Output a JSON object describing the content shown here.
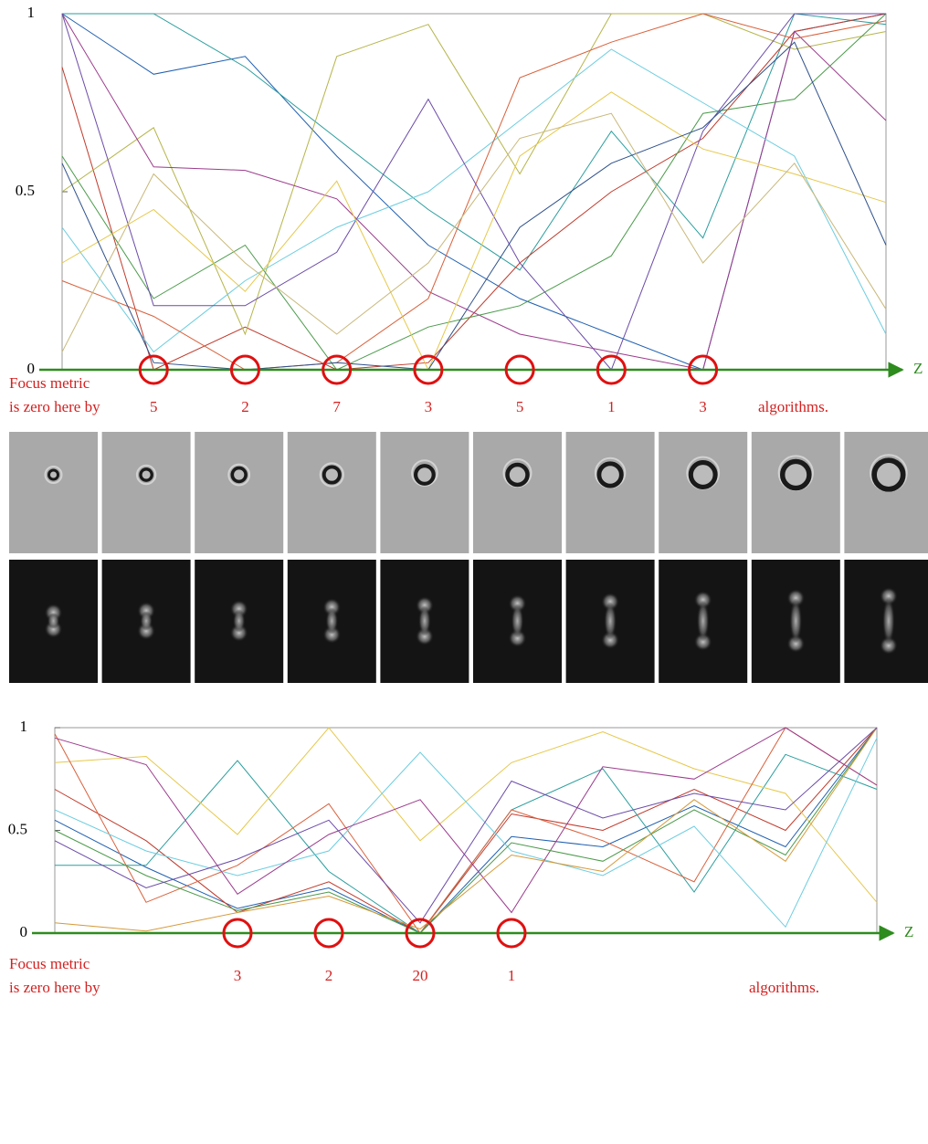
{
  "chart_data": [
    {
      "type": "line",
      "categories": [
        null,
        null,
        null,
        null,
        null,
        null,
        null,
        null,
        null,
        null
      ],
      "ylim": [
        0,
        1
      ],
      "yticks": [
        0,
        0.5,
        1
      ],
      "grid": false,
      "axis_label": "Z",
      "note_lines": [
        "Focus metric",
        "is zero here by"
      ],
      "zero_counts": [
        null,
        5,
        2,
        7,
        3,
        5,
        1,
        3,
        null,
        null
      ],
      "note_end": "algorithms.",
      "series": [
        {
          "color": "#1f5fb0",
          "values": [
            1,
            0.83,
            0.88,
            0.6,
            0.35,
            0.2,
            0.1,
            0,
            0.95,
            1
          ]
        },
        {
          "color": "#2a9d9d",
          "values": [
            1,
            1,
            0.85,
            0.65,
            0.45,
            0.28,
            0.67,
            0.37,
            1,
            0.97
          ]
        },
        {
          "color": "#c0392b",
          "values": [
            0.85,
            0,
            0.12,
            0,
            0.02,
            0.3,
            0.5,
            0.65,
            0.95,
            1
          ]
        },
        {
          "color": "#b5b54a",
          "values": [
            0.5,
            0.68,
            0.1,
            0.88,
            0.97,
            0.55,
            1,
            1,
            0.9,
            0.95
          ]
        },
        {
          "color": "#9b3b8c",
          "values": [
            1,
            0.57,
            0.56,
            0.48,
            0.22,
            0.1,
            0.05,
            0,
            0.95,
            0.7
          ]
        },
        {
          "color": "#6ccde0",
          "values": [
            0.4,
            0.05,
            0.25,
            0.4,
            0.5,
            0.7,
            0.9,
            0.75,
            0.6,
            0.1
          ]
        },
        {
          "color": "#d9603b",
          "values": [
            0.25,
            0.15,
            0,
            0.02,
            0.2,
            0.82,
            0.92,
            1,
            0.93,
            0.98
          ]
        },
        {
          "color": "#4a9a4a",
          "values": [
            0.6,
            0.2,
            0.35,
            0,
            0.12,
            0.18,
            0.32,
            0.72,
            0.76,
            1
          ]
        },
        {
          "color": "#6a4aa8",
          "values": [
            1,
            0.18,
            0.18,
            0.33,
            0.76,
            0.3,
            0,
            0.67,
            1,
            1
          ]
        },
        {
          "color": "#e6c84a",
          "values": [
            0.3,
            0.45,
            0.22,
            0.53,
            0,
            0.6,
            0.78,
            0.62,
            0.55,
            0.47
          ]
        },
        {
          "color": "#2d4f8a",
          "values": [
            0.58,
            0.02,
            0,
            0.02,
            0,
            0.4,
            0.58,
            0.68,
            0.92,
            0.35
          ]
        },
        {
          "color": "#c9b87a",
          "values": [
            0.05,
            0.55,
            0.3,
            0.1,
            0.3,
            0.65,
            0.72,
            0.3,
            0.58,
            0.17
          ]
        }
      ]
    },
    {
      "type": "line",
      "categories": [
        null,
        null,
        null,
        null,
        null,
        null,
        null,
        null,
        null,
        null
      ],
      "ylim": [
        0,
        1
      ],
      "yticks": [
        0,
        0.5,
        1
      ],
      "grid": false,
      "axis_label": "Z",
      "note_lines": [
        "Focus metric",
        "is zero here by"
      ],
      "zero_counts": [
        null,
        null,
        3,
        2,
        20,
        1,
        null,
        null,
        null,
        null
      ],
      "note_end": "algorithms.",
      "series": [
        {
          "color": "#1f5fb0",
          "values": [
            0.55,
            0.32,
            0.12,
            0.22,
            0,
            0.47,
            0.42,
            0.62,
            0.42,
            1
          ]
        },
        {
          "color": "#c0392b",
          "values": [
            0.7,
            0.45,
            0.1,
            0.25,
            0,
            0.58,
            0.5,
            0.7,
            0.5,
            1
          ]
        },
        {
          "color": "#2a9d9d",
          "values": [
            0.33,
            0.33,
            0.84,
            0.3,
            0,
            0.6,
            0.8,
            0.2,
            0.87,
            0.7
          ]
        },
        {
          "color": "#e6c84a",
          "values": [
            0.83,
            0.86,
            0.48,
            1,
            0.45,
            0.83,
            0.98,
            0.8,
            0.68,
            0.15
          ]
        },
        {
          "color": "#d9603b",
          "values": [
            0.97,
            0.15,
            0.33,
            0.63,
            0,
            0.6,
            0.45,
            0.25,
            1,
            0.72
          ]
        },
        {
          "color": "#6ccde0",
          "values": [
            0.6,
            0.4,
            0.28,
            0.4,
            0.88,
            0.4,
            0.28,
            0.52,
            0.03,
            0.95
          ]
        },
        {
          "color": "#9b3b8c",
          "values": [
            0.95,
            0.82,
            0.19,
            0.48,
            0.65,
            0.1,
            0.81,
            0.75,
            1,
            0.72
          ]
        },
        {
          "color": "#4a9a4a",
          "values": [
            0.5,
            0.28,
            0.11,
            0.2,
            0,
            0.44,
            0.35,
            0.6,
            0.38,
            1
          ]
        },
        {
          "color": "#d69a3a",
          "values": [
            0.05,
            0.01,
            0.1,
            0.18,
            0.02,
            0.38,
            0.3,
            0.65,
            0.35,
            1
          ]
        },
        {
          "color": "#6a4aa8",
          "values": [
            0.45,
            0.22,
            0.36,
            0.55,
            0.05,
            0.74,
            0.56,
            0.68,
            0.6,
            1
          ]
        }
      ]
    }
  ]
}
